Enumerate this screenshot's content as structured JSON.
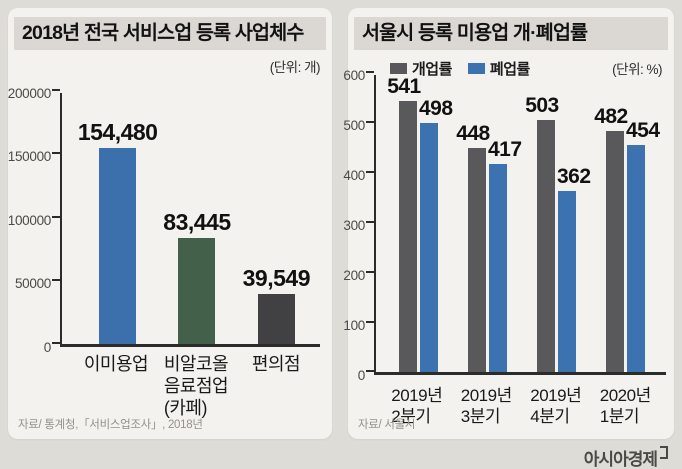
{
  "branding": {
    "logo_text": "아시아경제"
  },
  "colors": {
    "page_bg": "#dedcd7",
    "panel_bg": "#f3f2ef",
    "title_band_bg": "#dbd8d3",
    "axis": "#2b2b2b",
    "blue": "#3b70ad",
    "green": "#42604a",
    "dark_gray": "#414143",
    "mid_gray": "#59595b"
  },
  "chart_data": [
    {
      "type": "bar",
      "title": "2018년 전국 서비스업 등록 사업체수",
      "unit_label": "(단위: 개)",
      "categories": [
        "이미용업",
        "비알코올\n음료점업\n(카페)",
        "편의점"
      ],
      "values": [
        154480,
        83445,
        39549
      ],
      "value_labels": [
        "154,480",
        "83,445",
        "39,549"
      ],
      "bar_colors": [
        "#3b70ad",
        "#42604a",
        "#414143"
      ],
      "ylim": [
        0,
        200000
      ],
      "yticks": [
        0,
        50000,
        100000,
        150000,
        200000
      ],
      "ytick_labels": [
        "0",
        "50000",
        "100000",
        "150000",
        "200000"
      ],
      "source": "자료/ 통계청,「서비스업조사」, 2018년"
    },
    {
      "type": "bar",
      "title": "서울시 등록 미용업 개·폐업률",
      "unit_label": "(단위: %)",
      "categories": [
        "2019년\n2분기",
        "2019년\n3분기",
        "2019년\n4분기",
        "2020년\n1분기"
      ],
      "series": [
        {
          "name": "개업률",
          "color": "#59595b",
          "values": [
            541,
            448,
            503,
            482
          ]
        },
        {
          "name": "폐업률",
          "color": "#3b72af",
          "values": [
            498,
            417,
            362,
            454
          ]
        }
      ],
      "ylim": [
        0,
        600
      ],
      "yticks": [
        0,
        100,
        200,
        300,
        400,
        500,
        600
      ],
      "ytick_labels": [
        "0",
        "100",
        "200",
        "300",
        "400",
        "500",
        "600"
      ],
      "source": "자료/ 서울시"
    }
  ]
}
